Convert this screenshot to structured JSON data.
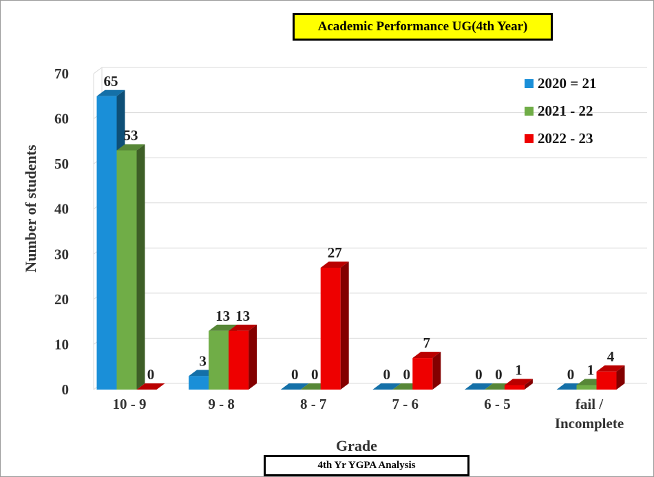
{
  "chart_data": {
    "type": "bar",
    "title": "Academic Performance UG(4th Year)",
    "caption": "4th Yr YGPA Analysis",
    "xlabel": "Grade",
    "ylabel": "Number of students",
    "ylim": [
      0,
      70
    ],
    "yticks": [
      0,
      10,
      20,
      30,
      40,
      50,
      60,
      70
    ],
    "categories": [
      "10 - 9",
      "9 - 8",
      "8 - 7",
      "7 - 6",
      "6 - 5",
      "fail / Incomplete"
    ],
    "series": [
      {
        "name": "2020 = 21",
        "color": "#1a8fd8",
        "values": [
          65,
          3,
          0,
          0,
          0,
          0
        ]
      },
      {
        "name": "2021 - 22",
        "color": "#70ad47",
        "values": [
          53,
          13,
          0,
          0,
          0,
          1
        ]
      },
      {
        "name": "2022 - 23",
        "color": "#ee0000",
        "values": [
          0,
          13,
          27,
          7,
          1,
          4
        ]
      }
    ],
    "grid": true,
    "legend": "top-right"
  }
}
